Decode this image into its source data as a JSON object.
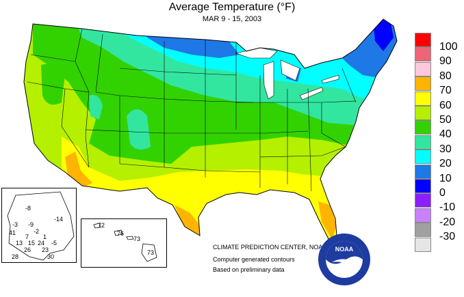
{
  "title": "Average Temperature (°F)",
  "subtitle": "MAR 9 - 15, 2003",
  "credits": {
    "line1": "CLIMATE PREDICTION CENTER, NOAA",
    "line2": "Computer generated contours",
    "line3": "Based on preliminary data"
  },
  "noaa_logo_text": "NOAA",
  "legend": [
    {
      "label": "100",
      "color": "#ff0000"
    },
    {
      "label": "90",
      "color": "#f06478"
    },
    {
      "label": "80",
      "color": "#ffc8dc"
    },
    {
      "label": "70",
      "color": "#ffb400"
    },
    {
      "label": "60",
      "color": "#ffff00"
    },
    {
      "label": "50",
      "color": "#b4f000"
    },
    {
      "label": "40",
      "color": "#32d200"
    },
    {
      "label": "30",
      "color": "#32e6a0"
    },
    {
      "label": "20",
      "color": "#00ffff"
    },
    {
      "label": "10",
      "color": "#1e78e6"
    },
    {
      "label": "0",
      "color": "#0000ff"
    },
    {
      "label": "-10",
      "color": "#8c1eff"
    },
    {
      "label": "-20",
      "color": "#c882ff"
    },
    {
      "label": "-30",
      "color": "#a0a0a0"
    },
    {
      "label": "",
      "color": "#e6e6e6"
    }
  ],
  "alaska_stations": [
    "-8",
    "-14",
    "-3",
    "-9",
    "41",
    "-2",
    "7",
    "1",
    "13",
    "15",
    "24",
    "-5",
    "26",
    "23",
    "28",
    "30"
  ],
  "hawaii_stations": [
    "72",
    "76",
    "73",
    "73"
  ]
}
